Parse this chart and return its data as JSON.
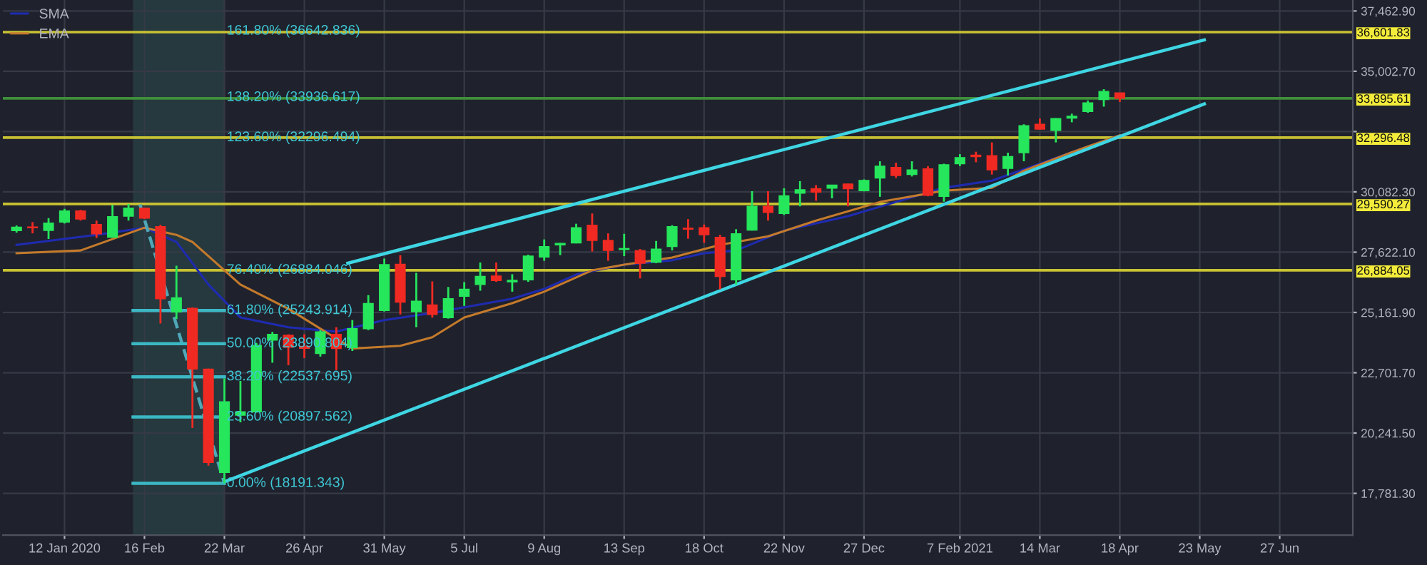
{
  "chart_data": {
    "type": "candlestick",
    "x": [
      "2019-12-22",
      "2019-12-29",
      "2020-01-05",
      "2020-01-12",
      "2020-01-19",
      "2020-01-26",
      "2020-02-02",
      "2020-02-09",
      "2020-02-16",
      "2020-02-23",
      "2020-03-01",
      "2020-03-08",
      "2020-03-15",
      "2020-03-22",
      "2020-03-29",
      "2020-04-05",
      "2020-04-12",
      "2020-04-19",
      "2020-04-26",
      "2020-05-03",
      "2020-05-10",
      "2020-05-17",
      "2020-05-24",
      "2020-05-31",
      "2020-06-07",
      "2020-06-14",
      "2020-06-21",
      "2020-06-28",
      "2020-07-05",
      "2020-07-12",
      "2020-07-19",
      "2020-07-26",
      "2020-08-02",
      "2020-08-09",
      "2020-08-16",
      "2020-08-23",
      "2020-08-30",
      "2020-09-06",
      "2020-09-13",
      "2020-09-20",
      "2020-09-27",
      "2020-10-04",
      "2020-10-11",
      "2020-10-18",
      "2020-10-25",
      "2020-11-01",
      "2020-11-08",
      "2020-11-15",
      "2020-11-22",
      "2020-11-29",
      "2020-12-06",
      "2020-12-13",
      "2020-12-20",
      "2020-12-27",
      "2021-01-03",
      "2021-01-10",
      "2021-01-17",
      "2021-01-24",
      "2021-01-31",
      "2021-02-07",
      "2021-02-14",
      "2021-02-21",
      "2021-02-28",
      "2021-03-07",
      "2021-03-14",
      "2021-03-21",
      "2021-03-28",
      "2021-04-04",
      "2021-04-11",
      "2021-04-18"
    ],
    "ohlc": [
      [
        28500,
        28710,
        28420,
        28640
      ],
      [
        28650,
        28850,
        28390,
        28620
      ],
      [
        28510,
        29010,
        28160,
        28810
      ],
      [
        28850,
        29390,
        28790,
        29300
      ],
      [
        29300,
        29350,
        28910,
        28970
      ],
      [
        28750,
        28910,
        28200,
        28370
      ],
      [
        28230,
        29550,
        28210,
        29070
      ],
      [
        29090,
        29590,
        28910,
        29420
      ],
      [
        29420,
        29430,
        28970,
        29010
      ],
      [
        28660,
        28740,
        24710,
        25720
      ],
      [
        25180,
        27070,
        24890,
        25760
      ],
      [
        25330,
        25370,
        20450,
        22850
      ],
      [
        22850,
        22870,
        18910,
        19040
      ],
      [
        18630,
        22470,
        18191,
        21520
      ],
      [
        20970,
        22370,
        20680,
        21110
      ],
      [
        21110,
        23920,
        21070,
        23820
      ],
      [
        24030,
        24370,
        23110,
        24270
      ],
      [
        24230,
        24270,
        23010,
        23740
      ],
      [
        23780,
        24270,
        23300,
        23700
      ],
      [
        23490,
        24440,
        23360,
        24370
      ],
      [
        24270,
        24560,
        22810,
        23690
      ],
      [
        23730,
        24850,
        23590,
        24500
      ],
      [
        24500,
        25870,
        24440,
        25530
      ],
      [
        25240,
        27360,
        25200,
        27110
      ],
      [
        27130,
        27500,
        25080,
        25580
      ],
      [
        25200,
        26780,
        24560,
        25620
      ],
      [
        25470,
        26430,
        24950,
        25080
      ],
      [
        24950,
        26200,
        24910,
        25720
      ],
      [
        25820,
        26400,
        25430,
        26110
      ],
      [
        26300,
        27200,
        26050,
        26630
      ],
      [
        26650,
        27200,
        26410,
        26460
      ],
      [
        26410,
        26720,
        26010,
        26470
      ],
      [
        26490,
        27520,
        26410,
        27460
      ],
      [
        27420,
        28140,
        27270,
        27850
      ],
      [
        27920,
        28000,
        27500,
        27980
      ],
      [
        28000,
        28780,
        27980,
        28620
      ],
      [
        28720,
        29200,
        27650,
        28100
      ],
      [
        28100,
        28390,
        27270,
        27690
      ],
      [
        27730,
        28370,
        27460,
        27770
      ],
      [
        27690,
        27750,
        26550,
        27170
      ],
      [
        27210,
        28080,
        27170,
        27750
      ],
      [
        27850,
        28720,
        27690,
        28660
      ],
      [
        28600,
        28970,
        28170,
        28560
      ],
      [
        28620,
        28750,
        28000,
        28330
      ],
      [
        28230,
        28330,
        26110,
        26630
      ],
      [
        26490,
        28560,
        26300,
        28370
      ],
      [
        28520,
        30110,
        28500,
        29490
      ],
      [
        29490,
        30110,
        28910,
        29240
      ],
      [
        29200,
        30230,
        29140,
        29920
      ],
      [
        30030,
        30520,
        29490,
        30170
      ],
      [
        30210,
        30360,
        29720,
        30070
      ],
      [
        30230,
        30360,
        29820,
        30360
      ],
      [
        30400,
        30420,
        29490,
        30210
      ],
      [
        30130,
        30590,
        30100,
        30550
      ],
      [
        30650,
        31330,
        29880,
        31130
      ],
      [
        31080,
        31270,
        30650,
        30750
      ],
      [
        30790,
        31330,
        30710,
        30980
      ],
      [
        31020,
        31130,
        29900,
        29940
      ],
      [
        29900,
        31230,
        29680,
        31190
      ],
      [
        31230,
        31620,
        31130,
        31480
      ],
      [
        31580,
        31720,
        31290,
        31520
      ],
      [
        31560,
        32100,
        30790,
        30980
      ],
      [
        31040,
        31680,
        30750,
        31520
      ],
      [
        31680,
        32840,
        31330,
        32780
      ],
      [
        32840,
        33070,
        32630,
        32640
      ],
      [
        32590,
        33090,
        32100,
        33070
      ],
      [
        33090,
        33270,
        32920,
        33170
      ],
      [
        33360,
        33810,
        33310,
        33710
      ],
      [
        33850,
        34270,
        33560,
        34180
      ],
      [
        34120,
        34120,
        33750,
        33900
      ]
    ],
    "colors": [
      "#26e65c",
      "#f02a22",
      "#26e65c",
      "#26e65c",
      "#f02a22",
      "#f02a22",
      "#26e65c",
      "#26e65c",
      "#f02a22",
      "#f02a22",
      "#26e65c",
      "#f02a22",
      "#f02a22",
      "#26e65c",
      "#26e65c",
      "#26e65c",
      "#26e65c",
      "#f02a22",
      "#f02a22",
      "#26e65c",
      "#f02a22",
      "#26e65c",
      "#26e65c",
      "#26e65c",
      "#f02a22",
      "#26e65c",
      "#f02a22",
      "#26e65c",
      "#26e65c",
      "#26e65c",
      "#f02a22",
      "#26e65c",
      "#26e65c",
      "#26e65c",
      "#26e65c",
      "#26e65c",
      "#f02a22",
      "#f02a22",
      "#26e65c",
      "#f02a22",
      "#26e65c",
      "#26e65c",
      "#f02a22",
      "#f02a22",
      "#f02a22",
      "#26e65c",
      "#26e65c",
      "#f02a22",
      "#26e65c",
      "#26e65c",
      "#f02a22",
      "#26e65c",
      "#f02a22",
      "#26e65c",
      "#26e65c",
      "#f02a22",
      "#26e65c",
      "#f02a22",
      "#26e65c",
      "#26e65c",
      "#f02a22",
      "#f02a22",
      "#26e65c",
      "#26e65c",
      "#f02a22",
      "#26e65c",
      "#26e65c",
      "#26e65c",
      "#26e65c",
      "#f02a22"
    ],
    "series": [
      {
        "type": "line",
        "name": "SMA",
        "color": "#1f2bb0",
        "x": [
          "2019-12-22",
          "2020-01-26",
          "2020-02-16",
          "2020-03-01",
          "2020-03-15",
          "2020-03-29",
          "2020-04-19",
          "2020-05-10",
          "2020-05-31",
          "2020-06-21",
          "2020-07-05",
          "2020-07-26",
          "2020-08-09",
          "2020-08-23",
          "2020-09-13",
          "2020-10-04",
          "2020-10-18",
          "2020-11-01",
          "2020-11-22",
          "2020-12-20",
          "2021-01-10",
          "2021-01-31",
          "2021-02-21",
          "2021-03-14",
          "2021-04-04",
          "2021-04-18"
        ],
        "values": [
          27920,
          28330,
          28620,
          28040,
          26300,
          24960,
          24560,
          24380,
          24850,
          25140,
          25370,
          25720,
          26120,
          26710,
          27110,
          27290,
          27580,
          27690,
          28500,
          29090,
          29670,
          30250,
          30540,
          31230,
          31930,
          32390
        ]
      },
      {
        "type": "line",
        "name": "EMA",
        "color": "#c47a2c",
        "x": [
          "2019-12-22",
          "2020-01-19",
          "2020-02-16",
          "2020-03-01",
          "2020-03-08",
          "2020-03-29",
          "2020-04-19",
          "2020-05-17",
          "2020-06-07",
          "2020-06-21",
          "2020-07-05",
          "2020-07-26",
          "2020-08-09",
          "2020-08-30",
          "2020-09-13",
          "2020-10-04",
          "2020-10-25",
          "2020-11-15",
          "2020-12-06",
          "2021-01-03",
          "2021-01-31",
          "2021-02-21",
          "2021-03-07",
          "2021-03-28",
          "2021-04-18"
        ],
        "values": [
          27580,
          27690,
          28620,
          28330,
          28040,
          26300,
          25310,
          23690,
          23800,
          24150,
          24960,
          25540,
          26010,
          26880,
          27110,
          27400,
          27920,
          28270,
          28910,
          29670,
          30130,
          30250,
          30940,
          31700,
          32390
        ]
      },
      {
        "type": "line",
        "color": "#3fd6e4",
        "x": [
          "2020-05-15",
          "2021-05-25"
        ],
        "values": [
          27170,
          36280
        ]
      },
      {
        "type": "line",
        "color": "#3fd6e4",
        "x": [
          "2020-03-23",
          "2021-05-25"
        ],
        "values": [
          18290,
          33670
        ]
      },
      {
        "type": "line",
        "color": "#4fa8b8",
        "line_style": "dashed",
        "x": [
          "2020-02-14",
          "2020-03-22"
        ],
        "values": [
          29570,
          18191
        ]
      },
      {
        "type": "line",
        "color": "#3bb8c4",
        "x": [
          "2020-02-11",
          "2020-03-22"
        ],
        "values": [
          25243.914,
          25243.914
        ]
      },
      {
        "type": "line",
        "color": "#3bb8c4",
        "x": [
          "2020-02-11",
          "2020-03-22"
        ],
        "values": [
          23890.804,
          23890.804
        ]
      },
      {
        "type": "line",
        "color": "#3bb8c4",
        "x": [
          "2020-02-11",
          "2020-03-22"
        ],
        "values": [
          22537.695,
          22537.695
        ]
      },
      {
        "type": "line",
        "color": "#3bb8c4",
        "x": [
          "2020-02-11",
          "2020-03-22"
        ],
        "values": [
          20897.562,
          20897.562
        ]
      },
      {
        "type": "line",
        "color": "#3bb8c4",
        "x": [
          "2020-02-11",
          "2020-03-22"
        ],
        "values": [
          18191.343,
          18191.343
        ]
      }
    ],
    "ref_lines": [
      {
        "axis": "y",
        "value": 36601.83,
        "label": "36,601.83",
        "color": "#c8c233"
      },
      {
        "axis": "y",
        "value": 33895.61,
        "label": "33,895.61",
        "color": "#3f8f3a"
      },
      {
        "axis": "y",
        "value": 32296.48,
        "label": "32,296.48",
        "color": "#c8c233"
      },
      {
        "axis": "y",
        "value": 29590.27,
        "label": "29,590.27",
        "color": "#c8c233"
      },
      {
        "axis": "y",
        "value": 26884.05,
        "label": "26,884.05",
        "color": "#c8c233"
      }
    ],
    "bands": [
      {
        "axis": "x",
        "from": "2020-02-11",
        "to": "2020-03-22",
        "color": "#25393f"
      }
    ],
    "annotations": [
      {
        "text": "161.80% (36642.836)",
        "x": "2020-03-23",
        "y": 36642.836
      },
      {
        "text": "138.20% (33936.617)",
        "x": "2020-03-23",
        "y": 33936.617
      },
      {
        "text": "123.60% (32296.494)",
        "x": "2020-03-23",
        "y": 32296.494
      },
      {
        "text": "76.40% (26884.046)",
        "x": "2020-03-23",
        "y": 26884.046
      },
      {
        "text": "61.80% (25243.914)",
        "x": "2020-03-23",
        "y": 25243.914
      },
      {
        "text": "50.00% (23890.804)",
        "x": "2020-03-23",
        "y": 23890.804
      },
      {
        "text": "38.20% (22537.695)",
        "x": "2020-03-23",
        "y": 22537.695
      },
      {
        "text": "23.60% (20897.562)",
        "x": "2020-03-23",
        "y": 20897.562
      },
      {
        "text": "0.00% (18191.343)",
        "x": "2020-03-23",
        "y": 18191.343
      }
    ],
    "xlim": [
      "2019-12-16",
      "2021-07-29"
    ],
    "xticks": [
      {
        "value": "2020-01-12",
        "label": "12 Jan 2020"
      },
      {
        "value": "2020-02-16",
        "label": "16 Feb"
      },
      {
        "value": "2020-03-22",
        "label": "22 Mar"
      },
      {
        "value": "2020-04-26",
        "label": "26 Apr"
      },
      {
        "value": "2020-05-31",
        "label": "31 May"
      },
      {
        "value": "2020-07-05",
        "label": "5 Jul"
      },
      {
        "value": "2020-08-09",
        "label": "9 Aug"
      },
      {
        "value": "2020-09-13",
        "label": "13 Sep"
      },
      {
        "value": "2020-10-18",
        "label": "18 Oct"
      },
      {
        "value": "2020-11-22",
        "label": "22 Nov"
      },
      {
        "value": "2020-12-27",
        "label": "27 Dec"
      },
      {
        "value": "2021-02-07",
        "label": "7 Feb 2021"
      },
      {
        "value": "2021-03-14",
        "label": "14 Mar"
      },
      {
        "value": "2021-04-18",
        "label": "18 Apr"
      },
      {
        "value": "2021-05-23",
        "label": "23 May"
      },
      {
        "value": "2021-06-27",
        "label": "27 Jun"
      }
    ],
    "ylim": [
      16080,
      37910
    ],
    "yticks": [
      {
        "value": 17781.3,
        "label": "17,781.30"
      },
      {
        "value": 20241.5,
        "label": "20,241.50"
      },
      {
        "value": 22701.7,
        "label": "22,701.70"
      },
      {
        "value": 25161.9,
        "label": "25,161.90"
      },
      {
        "value": 27622.1,
        "label": "27,622.10"
      },
      {
        "value": 30082.3,
        "label": "30,082.30"
      },
      {
        "value": 32542.5,
        "label": null
      },
      {
        "value": 35002.7,
        "label": "35,002.70"
      },
      {
        "value": 37462.9,
        "label": "37,462.90"
      }
    ],
    "grid": true,
    "legend": "top left"
  }
}
